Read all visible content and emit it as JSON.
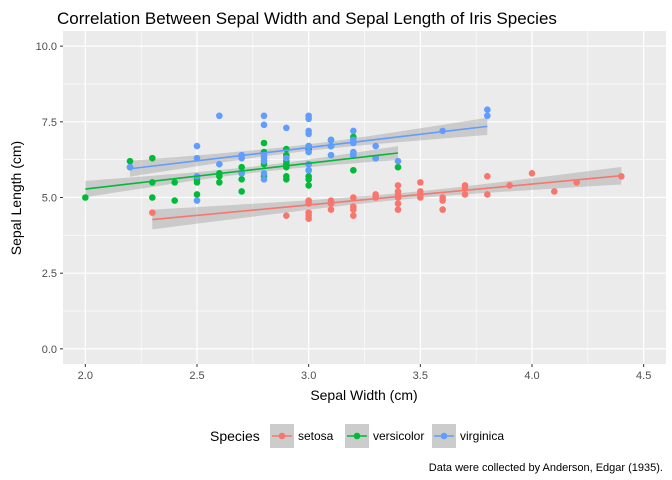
{
  "chart_data": {
    "type": "scatter",
    "title": "Correlation Between Sepal Width and Sepal Length of Iris Species",
    "xlabel": "Sepal Width (cm)",
    "ylabel": "Sepal Length (cm)",
    "caption": "Data were collected by Anderson, Edgar (1935).",
    "xlim": [
      1.9,
      4.6
    ],
    "ylim": [
      -0.5,
      10.5
    ],
    "x_ticks": [
      2.0,
      2.5,
      3.0,
      3.5,
      4.0,
      4.5
    ],
    "x_tick_labels": [
      "2.0",
      "2.5",
      "3.0",
      "3.5",
      "4.0",
      "4.5"
    ],
    "y_ticks": [
      0,
      2.5,
      5,
      7.5,
      10
    ],
    "y_tick_labels": [
      "0.0",
      "2.5",
      "5.0",
      "7.5",
      "10.0"
    ],
    "grid": true,
    "legend": {
      "title": "Species",
      "position": "bottom"
    },
    "series": [
      {
        "name": "setosa",
        "color": "#F8766D",
        "points": [
          [
            2.3,
            4.5
          ],
          [
            2.9,
            4.4
          ],
          [
            3.0,
            4.3
          ],
          [
            3.0,
            4.4
          ],
          [
            3.0,
            4.5
          ],
          [
            3.0,
            4.8
          ],
          [
            3.0,
            4.9
          ],
          [
            3.1,
            4.6
          ],
          [
            3.1,
            4.8
          ],
          [
            3.1,
            4.9
          ],
          [
            3.2,
            4.4
          ],
          [
            3.2,
            4.6
          ],
          [
            3.2,
            4.7
          ],
          [
            3.2,
            5.0
          ],
          [
            3.3,
            5.0
          ],
          [
            3.3,
            5.1
          ],
          [
            3.4,
            4.6
          ],
          [
            3.4,
            4.8
          ],
          [
            3.4,
            5.0
          ],
          [
            3.4,
            5.1
          ],
          [
            3.4,
            5.2
          ],
          [
            3.4,
            5.4
          ],
          [
            3.5,
            5.0
          ],
          [
            3.5,
            5.1
          ],
          [
            3.5,
            5.2
          ],
          [
            3.5,
            5.5
          ],
          [
            3.6,
            4.6
          ],
          [
            3.6,
            4.9
          ],
          [
            3.6,
            5.0
          ],
          [
            3.7,
            5.1
          ],
          [
            3.7,
            5.3
          ],
          [
            3.7,
            5.4
          ],
          [
            3.8,
            5.1
          ],
          [
            3.8,
            5.7
          ],
          [
            3.9,
            5.4
          ],
          [
            4.0,
            5.8
          ],
          [
            4.1,
            5.2
          ],
          [
            4.2,
            5.5
          ],
          [
            4.4,
            5.7
          ]
        ],
        "fit": {
          "x": [
            2.3,
            4.4
          ],
          "y": [
            4.27,
            5.72
          ]
        }
      },
      {
        "name": "versicolor",
        "color": "#00BA38",
        "points": [
          [
            2.0,
            5.0
          ],
          [
            2.2,
            6.0
          ],
          [
            2.2,
            6.2
          ],
          [
            2.3,
            5.0
          ],
          [
            2.3,
            5.5
          ],
          [
            2.3,
            6.3
          ],
          [
            2.4,
            4.9
          ],
          [
            2.4,
            5.5
          ],
          [
            2.5,
            5.1
          ],
          [
            2.5,
            5.5
          ],
          [
            2.5,
            5.6
          ],
          [
            2.6,
            5.5
          ],
          [
            2.6,
            5.7
          ],
          [
            2.6,
            5.8
          ],
          [
            2.7,
            5.2
          ],
          [
            2.7,
            5.6
          ],
          [
            2.7,
            5.8
          ],
          [
            2.7,
            6.0
          ],
          [
            2.8,
            5.7
          ],
          [
            2.8,
            6.1
          ],
          [
            2.8,
            6.5
          ],
          [
            2.8,
            6.8
          ],
          [
            2.9,
            5.6
          ],
          [
            2.9,
            5.7
          ],
          [
            2.9,
            6.0
          ],
          [
            2.9,
            6.1
          ],
          [
            2.9,
            6.2
          ],
          [
            2.9,
            6.4
          ],
          [
            2.9,
            6.6
          ],
          [
            3.0,
            5.4
          ],
          [
            3.0,
            5.6
          ],
          [
            3.0,
            5.7
          ],
          [
            3.0,
            5.9
          ],
          [
            3.0,
            6.1
          ],
          [
            3.0,
            6.6
          ],
          [
            3.0,
            6.7
          ],
          [
            3.1,
            6.7
          ],
          [
            3.1,
            6.9
          ],
          [
            3.2,
            5.9
          ],
          [
            3.2,
            6.4
          ],
          [
            3.2,
            7.0
          ],
          [
            3.3,
            6.3
          ],
          [
            3.4,
            6.0
          ]
        ],
        "fit": {
          "x": [
            2.0,
            3.4
          ],
          "y": [
            5.28,
            6.47
          ]
        }
      },
      {
        "name": "virginica",
        "color": "#619CFF",
        "points": [
          [
            2.2,
            6.0
          ],
          [
            2.5,
            4.9
          ],
          [
            2.5,
            5.7
          ],
          [
            2.5,
            6.3
          ],
          [
            2.5,
            6.7
          ],
          [
            2.6,
            6.1
          ],
          [
            2.6,
            7.7
          ],
          [
            2.7,
            5.8
          ],
          [
            2.7,
            6.3
          ],
          [
            2.7,
            6.4
          ],
          [
            2.8,
            5.6
          ],
          [
            2.8,
            5.8
          ],
          [
            2.8,
            6.2
          ],
          [
            2.8,
            6.3
          ],
          [
            2.8,
            6.4
          ],
          [
            2.8,
            7.4
          ],
          [
            2.8,
            7.7
          ],
          [
            2.9,
            6.3
          ],
          [
            2.9,
            7.3
          ],
          [
            3.0,
            5.9
          ],
          [
            3.0,
            6.1
          ],
          [
            3.0,
            6.5
          ],
          [
            3.0,
            6.7
          ],
          [
            3.0,
            7.1
          ],
          [
            3.0,
            7.2
          ],
          [
            3.0,
            7.6
          ],
          [
            3.0,
            7.7
          ],
          [
            3.1,
            6.4
          ],
          [
            3.1,
            6.7
          ],
          [
            3.1,
            6.9
          ],
          [
            3.2,
            6.4
          ],
          [
            3.2,
            6.5
          ],
          [
            3.2,
            6.8
          ],
          [
            3.2,
            6.9
          ],
          [
            3.2,
            7.2
          ],
          [
            3.3,
            6.3
          ],
          [
            3.3,
            6.7
          ],
          [
            3.4,
            6.2
          ],
          [
            3.6,
            7.2
          ],
          [
            3.8,
            7.7
          ],
          [
            3.8,
            7.9
          ]
        ],
        "fit": {
          "x": [
            2.2,
            3.8
          ],
          "y": [
            5.95,
            7.35
          ]
        }
      }
    ]
  }
}
